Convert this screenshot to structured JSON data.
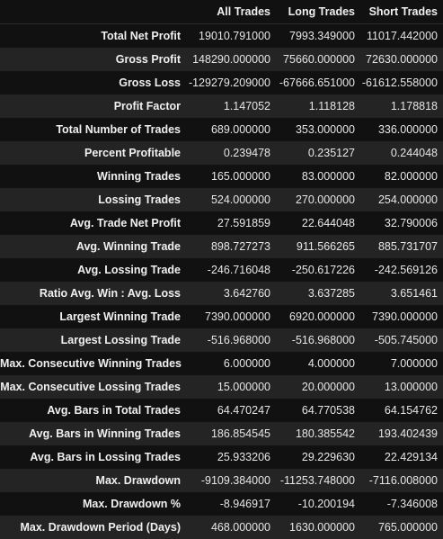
{
  "table": {
    "columns": [
      "",
      "All Trades",
      "Long Trades",
      "Short Trades"
    ],
    "rows": [
      {
        "label": "Total Net Profit",
        "all": "19010.791000",
        "long": "7993.349000",
        "short": "11017.442000"
      },
      {
        "label": "Gross Profit",
        "all": "148290.000000",
        "long": "75660.000000",
        "short": "72630.000000"
      },
      {
        "label": "Gross Loss",
        "all": "-129279.209000",
        "long": "-67666.651000",
        "short": "-61612.558000"
      },
      {
        "label": "Profit Factor",
        "all": "1.147052",
        "long": "1.118128",
        "short": "1.178818"
      },
      {
        "label": "Total Number of Trades",
        "all": "689.000000",
        "long": "353.000000",
        "short": "336.000000"
      },
      {
        "label": "Percent Profitable",
        "all": "0.239478",
        "long": "0.235127",
        "short": "0.244048"
      },
      {
        "label": "Winning Trades",
        "all": "165.000000",
        "long": "83.000000",
        "short": "82.000000"
      },
      {
        "label": "Lossing Trades",
        "all": "524.000000",
        "long": "270.000000",
        "short": "254.000000"
      },
      {
        "label": "Avg. Trade Net Profit",
        "all": "27.591859",
        "long": "22.644048",
        "short": "32.790006"
      },
      {
        "label": "Avg. Winning Trade",
        "all": "898.727273",
        "long": "911.566265",
        "short": "885.731707"
      },
      {
        "label": "Avg. Lossing Trade",
        "all": "-246.716048",
        "long": "-250.617226",
        "short": "-242.569126"
      },
      {
        "label": "Ratio Avg. Win : Avg. Loss",
        "all": "3.642760",
        "long": "3.637285",
        "short": "3.651461"
      },
      {
        "label": "Largest Winning Trade",
        "all": "7390.000000",
        "long": "6920.000000",
        "short": "7390.000000"
      },
      {
        "label": "Largest Lossing Trade",
        "all": "-516.968000",
        "long": "-516.968000",
        "short": "-505.745000"
      },
      {
        "label": "Max. Consecutive Winning Trades",
        "all": "6.000000",
        "long": "4.000000",
        "short": "7.000000"
      },
      {
        "label": "Max. Consecutive Lossing Trades",
        "all": "15.000000",
        "long": "20.000000",
        "short": "13.000000"
      },
      {
        "label": "Avg. Bars in Total Trades",
        "all": "64.470247",
        "long": "64.770538",
        "short": "64.154762"
      },
      {
        "label": "Avg. Bars in Winning Trades",
        "all": "186.854545",
        "long": "180.385542",
        "short": "193.402439"
      },
      {
        "label": "Avg. Bars in Lossing Trades",
        "all": "25.933206",
        "long": "29.229630",
        "short": "22.429134"
      },
      {
        "label": "Max. Drawdown",
        "all": "-9109.384000",
        "long": "-11253.748000",
        "short": "-7116.008000"
      },
      {
        "label": "Max. Drawdown %",
        "all": "-8.946917",
        "long": "-10.200194",
        "short": "-7.346008"
      },
      {
        "label": "Max. Drawdown Period (Days)",
        "all": "468.000000",
        "long": "1630.000000",
        "short": "765.000000"
      }
    ]
  }
}
